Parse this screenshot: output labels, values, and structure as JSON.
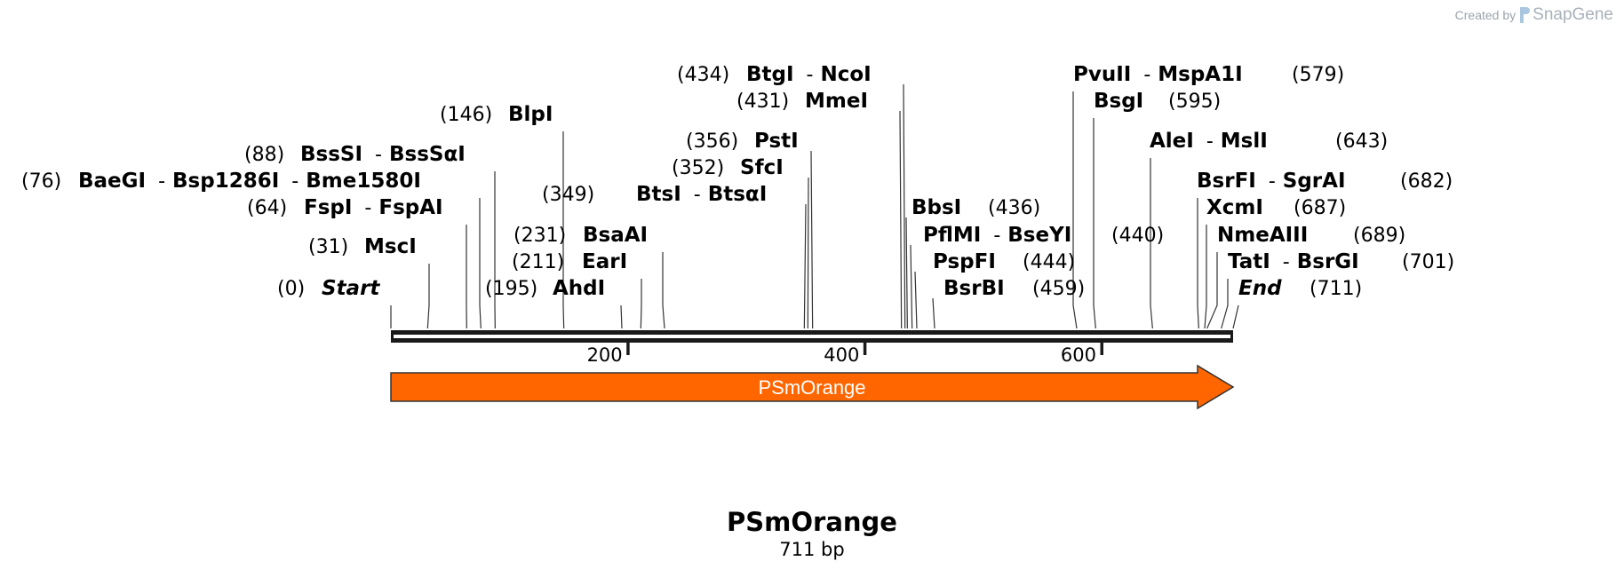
{
  "credit": {
    "prefix": "Created by",
    "brand": "SnapGene",
    "logo_icon": "snapgene-logo-icon"
  },
  "sequence": {
    "name": "PSmOrange",
    "length_label": "711 bp",
    "length": 711
  },
  "scale": {
    "ticks": [
      200,
      400,
      600
    ]
  },
  "feature": {
    "label": "PSmOrange",
    "start": 1,
    "end": 711,
    "direction": "forward",
    "color": "#ff6600",
    "text_color": "#ffffff"
  },
  "sites": [
    {
      "pos": "(0)",
      "p": 0,
      "parts": [
        "Start"
      ],
      "italic": true,
      "side": "left"
    },
    {
      "pos": "(31)",
      "p": 31,
      "parts": [
        "MscI"
      ],
      "side": "left"
    },
    {
      "pos": "(64)",
      "p": 64,
      "parts": [
        "FspI",
        "FspAI"
      ],
      "side": "left"
    },
    {
      "pos": "(76)",
      "p": 76,
      "parts": [
        "BaeGI",
        "Bsp1286I",
        "Bme1580I"
      ],
      "side": "left"
    },
    {
      "pos": "(88)",
      "p": 88,
      "parts": [
        "BssSI",
        "BssSαI"
      ],
      "side": "left"
    },
    {
      "pos": "(146)",
      "p": 146,
      "parts": [
        "BlpI"
      ],
      "side": "left"
    },
    {
      "pos": "(195)",
      "p": 195,
      "parts": [
        "AhdI"
      ],
      "side": "left"
    },
    {
      "pos": "(211)",
      "p": 211,
      "parts": [
        "EarI"
      ],
      "side": "left"
    },
    {
      "pos": "(231)",
      "p": 231,
      "parts": [
        "BsaAI"
      ],
      "side": "left"
    },
    {
      "pos": "(349)",
      "p": 349,
      "parts": [
        "BtsI",
        "BtsαI"
      ],
      "side": "left"
    },
    {
      "pos": "(352)",
      "p": 352,
      "parts": [
        "SfcI"
      ],
      "side": "left"
    },
    {
      "pos": "(356)",
      "p": 356,
      "parts": [
        "PstI"
      ],
      "side": "left"
    },
    {
      "pos": "(431)",
      "p": 431,
      "parts": [
        "MmeI"
      ],
      "side": "left"
    },
    {
      "pos": "(434)",
      "p": 434,
      "parts": [
        "BtgI",
        "NcoI"
      ],
      "side": "left"
    },
    {
      "pos": "(436)",
      "p": 436,
      "parts": [
        "BbsI"
      ],
      "side": "right"
    },
    {
      "pos": "(440)",
      "p": 440,
      "parts": [
        "PflMI",
        "BseYI"
      ],
      "side": "right"
    },
    {
      "pos": "(444)",
      "p": 444,
      "parts": [
        "PspFI"
      ],
      "side": "right"
    },
    {
      "pos": "(459)",
      "p": 459,
      "parts": [
        "BsrBI"
      ],
      "side": "right"
    },
    {
      "pos": "(579)",
      "p": 579,
      "parts": [
        "PvuII",
        "MspA1I"
      ],
      "side": "right"
    },
    {
      "pos": "(595)",
      "p": 595,
      "parts": [
        "BsgI"
      ],
      "side": "right"
    },
    {
      "pos": "(643)",
      "p": 643,
      "parts": [
        "AleI",
        "MslI"
      ],
      "side": "right"
    },
    {
      "pos": "(682)",
      "p": 682,
      "parts": [
        "BsrFI",
        "SgrAI"
      ],
      "side": "right"
    },
    {
      "pos": "(687)",
      "p": 687,
      "parts": [
        "XcmI"
      ],
      "side": "right"
    },
    {
      "pos": "(689)",
      "p": 689,
      "parts": [
        "NmeAIII"
      ],
      "side": "right"
    },
    {
      "pos": "(701)",
      "p": 701,
      "parts": [
        "TatI",
        "BsrGI"
      ],
      "side": "right"
    },
    {
      "pos": "(711)",
      "p": 711,
      "parts": [
        "End"
      ],
      "italic": true,
      "side": "right"
    }
  ]
}
